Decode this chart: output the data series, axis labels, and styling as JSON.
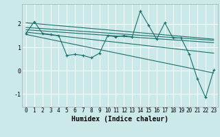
{
  "xlabel": "Humidex (Indice chaleur)",
  "ylabel": "",
  "background_color": "#cce9e9",
  "grid_color": "#ffffff",
  "line_color": "#1a6e6a",
  "xlim": [
    -0.5,
    23.5
  ],
  "ylim": [
    -1.55,
    2.85
  ],
  "yticks": [
    -1,
    0,
    1,
    2
  ],
  "xticks": [
    0,
    1,
    2,
    3,
    4,
    5,
    6,
    7,
    8,
    9,
    10,
    11,
    12,
    13,
    14,
    15,
    16,
    17,
    18,
    19,
    20,
    21,
    22,
    23
  ],
  "data_y": [
    1.6,
    2.1,
    1.6,
    1.55,
    1.5,
    0.65,
    0.7,
    0.65,
    0.55,
    0.75,
    1.5,
    1.45,
    1.5,
    1.45,
    2.55,
    1.95,
    1.35,
    2.05,
    1.4,
    1.4,
    0.7,
    -0.35,
    -1.15,
    0.02
  ],
  "reg_lines": [
    {
      "x0": 0,
      "y0": 2.05,
      "x1": 23,
      "y1": 1.35
    },
    {
      "x0": 0,
      "y0": 1.85,
      "x1": 23,
      "y1": 1.3
    },
    {
      "x0": 0,
      "y0": 1.75,
      "x1": 23,
      "y1": 1.2
    },
    {
      "x0": 0,
      "y0": 1.65,
      "x1": 23,
      "y1": 0.75
    },
    {
      "x0": 0,
      "y0": 1.55,
      "x1": 23,
      "y1": -0.1
    }
  ],
  "tick_fontsize": 5.5,
  "xlabel_fontsize": 7
}
